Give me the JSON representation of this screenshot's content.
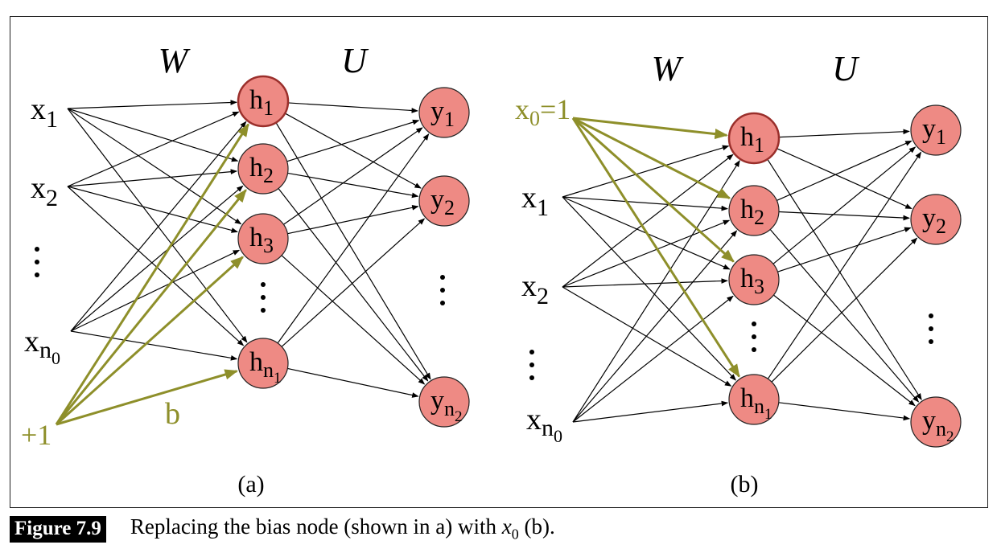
{
  "colors": {
    "node_fill": "#ee8a84",
    "node_stroke": "#9a2f2b",
    "bias": "#8e8f2a",
    "edge": "#000000"
  },
  "panel_a": {
    "W": "W",
    "U": "U",
    "panel_label": "(a)",
    "inputs": [
      "x1",
      "x2",
      "xn0"
    ],
    "hidden": [
      "h1",
      "h2",
      "h3",
      "hn1"
    ],
    "outputs": [
      "y1",
      "y2",
      "yn2"
    ],
    "bias_label": "+1",
    "bias_weight": "b"
  },
  "panel_b": {
    "W": "W",
    "U": "U",
    "panel_label": "(b)",
    "bias_input": "x0=1",
    "inputs": [
      "x1",
      "x2",
      "xn0"
    ],
    "hidden": [
      "h1",
      "h2",
      "h3",
      "hn1"
    ],
    "outputs": [
      "y1",
      "y2",
      "yn2"
    ]
  },
  "caption": {
    "label": "Figure 7.9",
    "text_before": "Replacing the bias node (shown in a) with ",
    "math": "x",
    "math_sub": "0",
    "text_after": " (b)."
  }
}
